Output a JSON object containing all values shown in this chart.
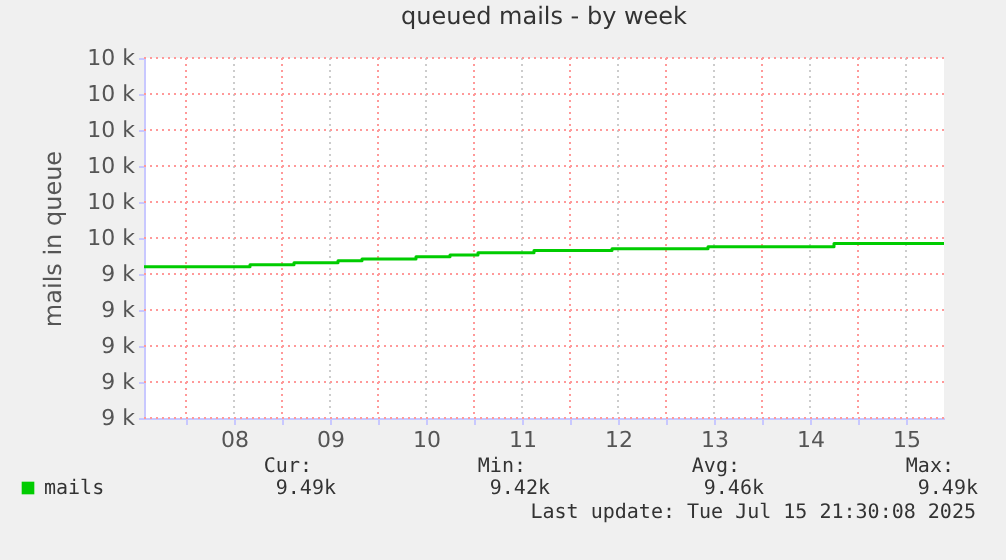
{
  "chart_data": {
    "type": "step",
    "title": "queued mails - by week",
    "ylabel": "mails in queue",
    "x": [
      "2025-07-07T13:30",
      "2025-07-08T16:00",
      "2025-07-09T03:00",
      "2025-07-09T14:00",
      "2025-07-09T20:00",
      "2025-07-10T09:30",
      "2025-07-10T18:00",
      "2025-07-11T01:00",
      "2025-07-11T15:00",
      "2025-07-12T10:30",
      "2025-07-13T10:30",
      "2025-07-14T18:00",
      "2025-07-15T21:30"
    ],
    "series": [
      {
        "name": "mails",
        "color": "#00cc00",
        "values": [
          9.42,
          9.426,
          9.431,
          9.437,
          9.442,
          9.448,
          9.453,
          9.459,
          9.465,
          9.47,
          9.476,
          9.485,
          9.485
        ]
      }
    ],
    "xlim": [
      "2025-07-07T13:30",
      "2025-07-15T21:30"
    ],
    "xticks": [
      {
        "value": "2025-07-08T00:00",
        "label": null
      },
      {
        "value": "2025-07-08T12:00",
        "label": "08"
      },
      {
        "value": "2025-07-09T00:00",
        "label": null
      },
      {
        "value": "2025-07-09T12:00",
        "label": "09"
      },
      {
        "value": "2025-07-10T00:00",
        "label": null
      },
      {
        "value": "2025-07-10T12:00",
        "label": "10"
      },
      {
        "value": "2025-07-11T00:00",
        "label": null
      },
      {
        "value": "2025-07-11T12:00",
        "label": "11"
      },
      {
        "value": "2025-07-12T00:00",
        "label": null
      },
      {
        "value": "2025-07-12T12:00",
        "label": "12"
      },
      {
        "value": "2025-07-13T00:00",
        "label": null
      },
      {
        "value": "2025-07-13T12:00",
        "label": "13"
      },
      {
        "value": "2025-07-14T00:00",
        "label": null
      },
      {
        "value": "2025-07-14T12:00",
        "label": "14"
      },
      {
        "value": "2025-07-15T00:00",
        "label": null
      },
      {
        "value": "2025-07-15T12:00",
        "label": "15"
      }
    ],
    "ylim": [
      9.0,
      10.0
    ],
    "yticks": [
      {
        "value": 9.0,
        "label": "9 k"
      },
      {
        "value": 9.1,
        "label": "9 k"
      },
      {
        "value": 9.2,
        "label": "9 k"
      },
      {
        "value": 9.3,
        "label": "9 k"
      },
      {
        "value": 9.4,
        "label": "9 k"
      },
      {
        "value": 9.5,
        "label": "10 k"
      },
      {
        "value": 9.6,
        "label": "10 k"
      },
      {
        "value": 9.7,
        "label": "10 k"
      },
      {
        "value": 9.8,
        "label": "10 k"
      },
      {
        "value": 9.9,
        "label": "10 k"
      },
      {
        "value": 10.0,
        "label": "10 k"
      }
    ],
    "grid": true,
    "legend": "bottom",
    "annotations": [
      "Cur:",
      "Min:",
      "Avg:",
      "Max:",
      "9.49k",
      "9.42k",
      "9.46k",
      "9.49k",
      "Last update: Tue Jul 15 21:30:08 2025"
    ]
  }
}
